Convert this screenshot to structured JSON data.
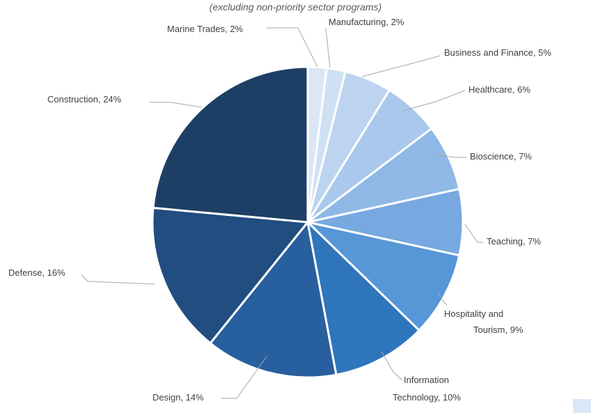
{
  "chart_data": {
    "type": "pie",
    "subtitle": "(excluding non-priority sector programs)",
    "slices": [
      {
        "label": "Marine Trades, 2%",
        "value": 2,
        "color": "#dbe7f5"
      },
      {
        "label": "Manufacturing, 2%",
        "value": 2,
        "color": "#cfe0f3"
      },
      {
        "label": "Business and Finance, 5%",
        "value": 5,
        "color": "#bcd4ef"
      },
      {
        "label": "Healthcare, 6%",
        "value": 6,
        "color": "#a9c8eb"
      },
      {
        "label": "Bioscience, 7%",
        "value": 7,
        "color": "#8fb8e6"
      },
      {
        "label": "Teaching, 7%",
        "value": 7,
        "color": "#77a8e0"
      },
      {
        "label": "Hospitality and Tourism, 9%",
        "value": 9,
        "color": "#5796d7"
      },
      {
        "label": "Information Technology, 10%",
        "value": 10,
        "color": "#2f75bb"
      },
      {
        "label": "Design, 14%",
        "value": 14,
        "color": "#285f9e"
      },
      {
        "label": "Defense, 16%",
        "value": 16,
        "color": "#214d80"
      },
      {
        "label": "Construction, 24%",
        "value": 24,
        "color": "#1d3f66"
      }
    ]
  }
}
